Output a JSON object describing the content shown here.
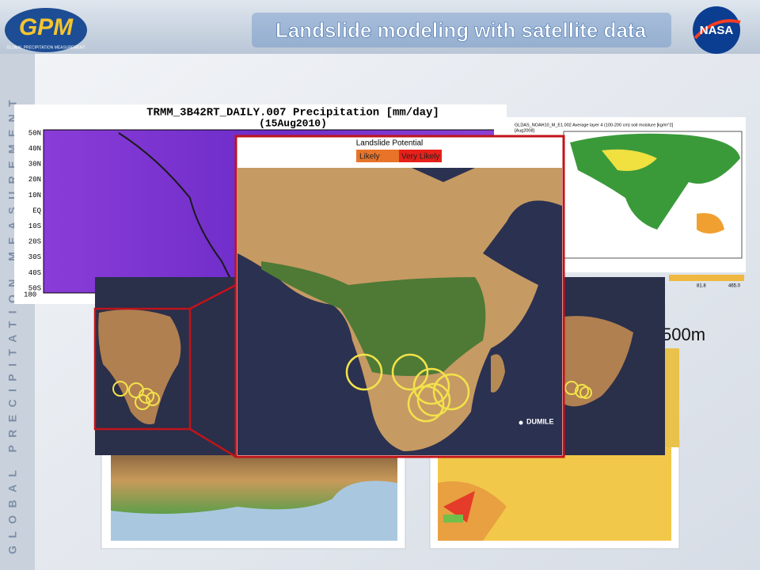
{
  "header": {
    "logo": "GPM",
    "logo_subtitle": "GLOBAL PRECIPITATION MEASUREMENT",
    "title": "Landslide modeling with satellite data",
    "agency": "NASA"
  },
  "side_banner": "GLOBAL PRECIPITATION MEASUREMENT",
  "precipitation_map": {
    "title": "TRMM_3B42RT_DAILY.007 Precipitation [mm/day]",
    "date": "(15Aug2010)",
    "latitude_labels": [
      "50N",
      "40N",
      "30N",
      "20N",
      "10N",
      "EQ",
      "10S",
      "20S",
      "30S",
      "40S",
      "50S"
    ],
    "longitude_label": "180"
  },
  "soil_moisture_map": {
    "title": "GLDAS_NOAH10_M_E1.002 Average layer 4 (100-200 cm) soil moisture [kg/m^2]",
    "date": "[Aug2008]",
    "colorbar_labels": [
      "81.8",
      "465.0"
    ]
  },
  "resolution_label": "500m",
  "landslide_inset": {
    "legend_title": "Landslide Potential",
    "legend_items": [
      "Likely",
      "Very Likely"
    ],
    "place_label": "DUMILE"
  }
}
